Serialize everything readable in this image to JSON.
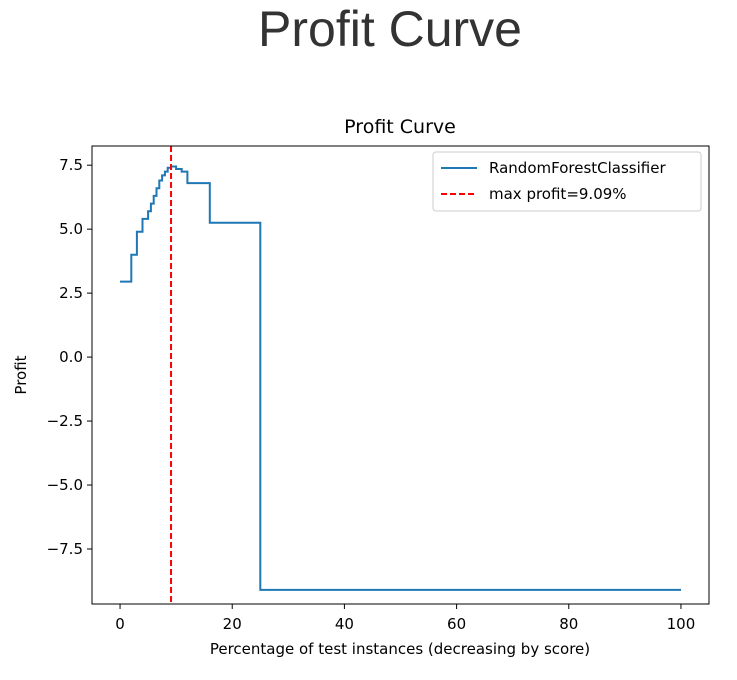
{
  "page": {
    "title": "Profit Curve"
  },
  "chart_data": {
    "type": "line",
    "title": "Profit Curve",
    "xlabel": "Percentage of test instances (decreasing by score)",
    "ylabel": "Profit",
    "xlim": [
      -5,
      105
    ],
    "ylim": [
      -9.65,
      8.25
    ],
    "xticks": [
      0,
      20,
      40,
      60,
      80,
      100
    ],
    "xtick_labels": [
      "0",
      "20",
      "40",
      "60",
      "80",
      "100"
    ],
    "yticks": [
      7.5,
      5.0,
      2.5,
      0.0,
      -2.5,
      -5.0,
      -7.5
    ],
    "ytick_labels": [
      "7.5",
      "5.0",
      "2.5",
      "0.0",
      "−2.5",
      "−5.0",
      "−7.5"
    ],
    "grid": false,
    "legend_position": "top-right",
    "series": [
      {
        "name": "RandomForestClassifier",
        "color": "#1f77b4",
        "style": "step",
        "x": [
          0,
          2,
          2,
          3,
          3,
          4,
          4,
          5,
          5,
          5.5,
          5.5,
          6,
          6,
          6.5,
          6.5,
          7,
          7,
          7.5,
          7.5,
          8,
          8,
          8.5,
          8.5,
          9.09,
          9.09,
          10,
          10,
          11,
          11,
          12,
          12,
          16,
          16,
          25,
          25,
          100
        ],
        "y": [
          2.95,
          2.95,
          4.0,
          4.0,
          4.9,
          4.9,
          5.4,
          5.4,
          5.7,
          5.7,
          6.0,
          6.0,
          6.3,
          6.3,
          6.6,
          6.6,
          6.9,
          6.9,
          7.1,
          7.1,
          7.25,
          7.25,
          7.4,
          7.4,
          7.45,
          7.45,
          7.35,
          7.35,
          7.25,
          7.25,
          6.8,
          6.8,
          5.25,
          5.25,
          -9.1,
          -9.1
        ]
      }
    ],
    "vline": {
      "name": "max profit=9.09%",
      "x": 9.09,
      "color": "#ff0000",
      "style": "dashed"
    }
  }
}
